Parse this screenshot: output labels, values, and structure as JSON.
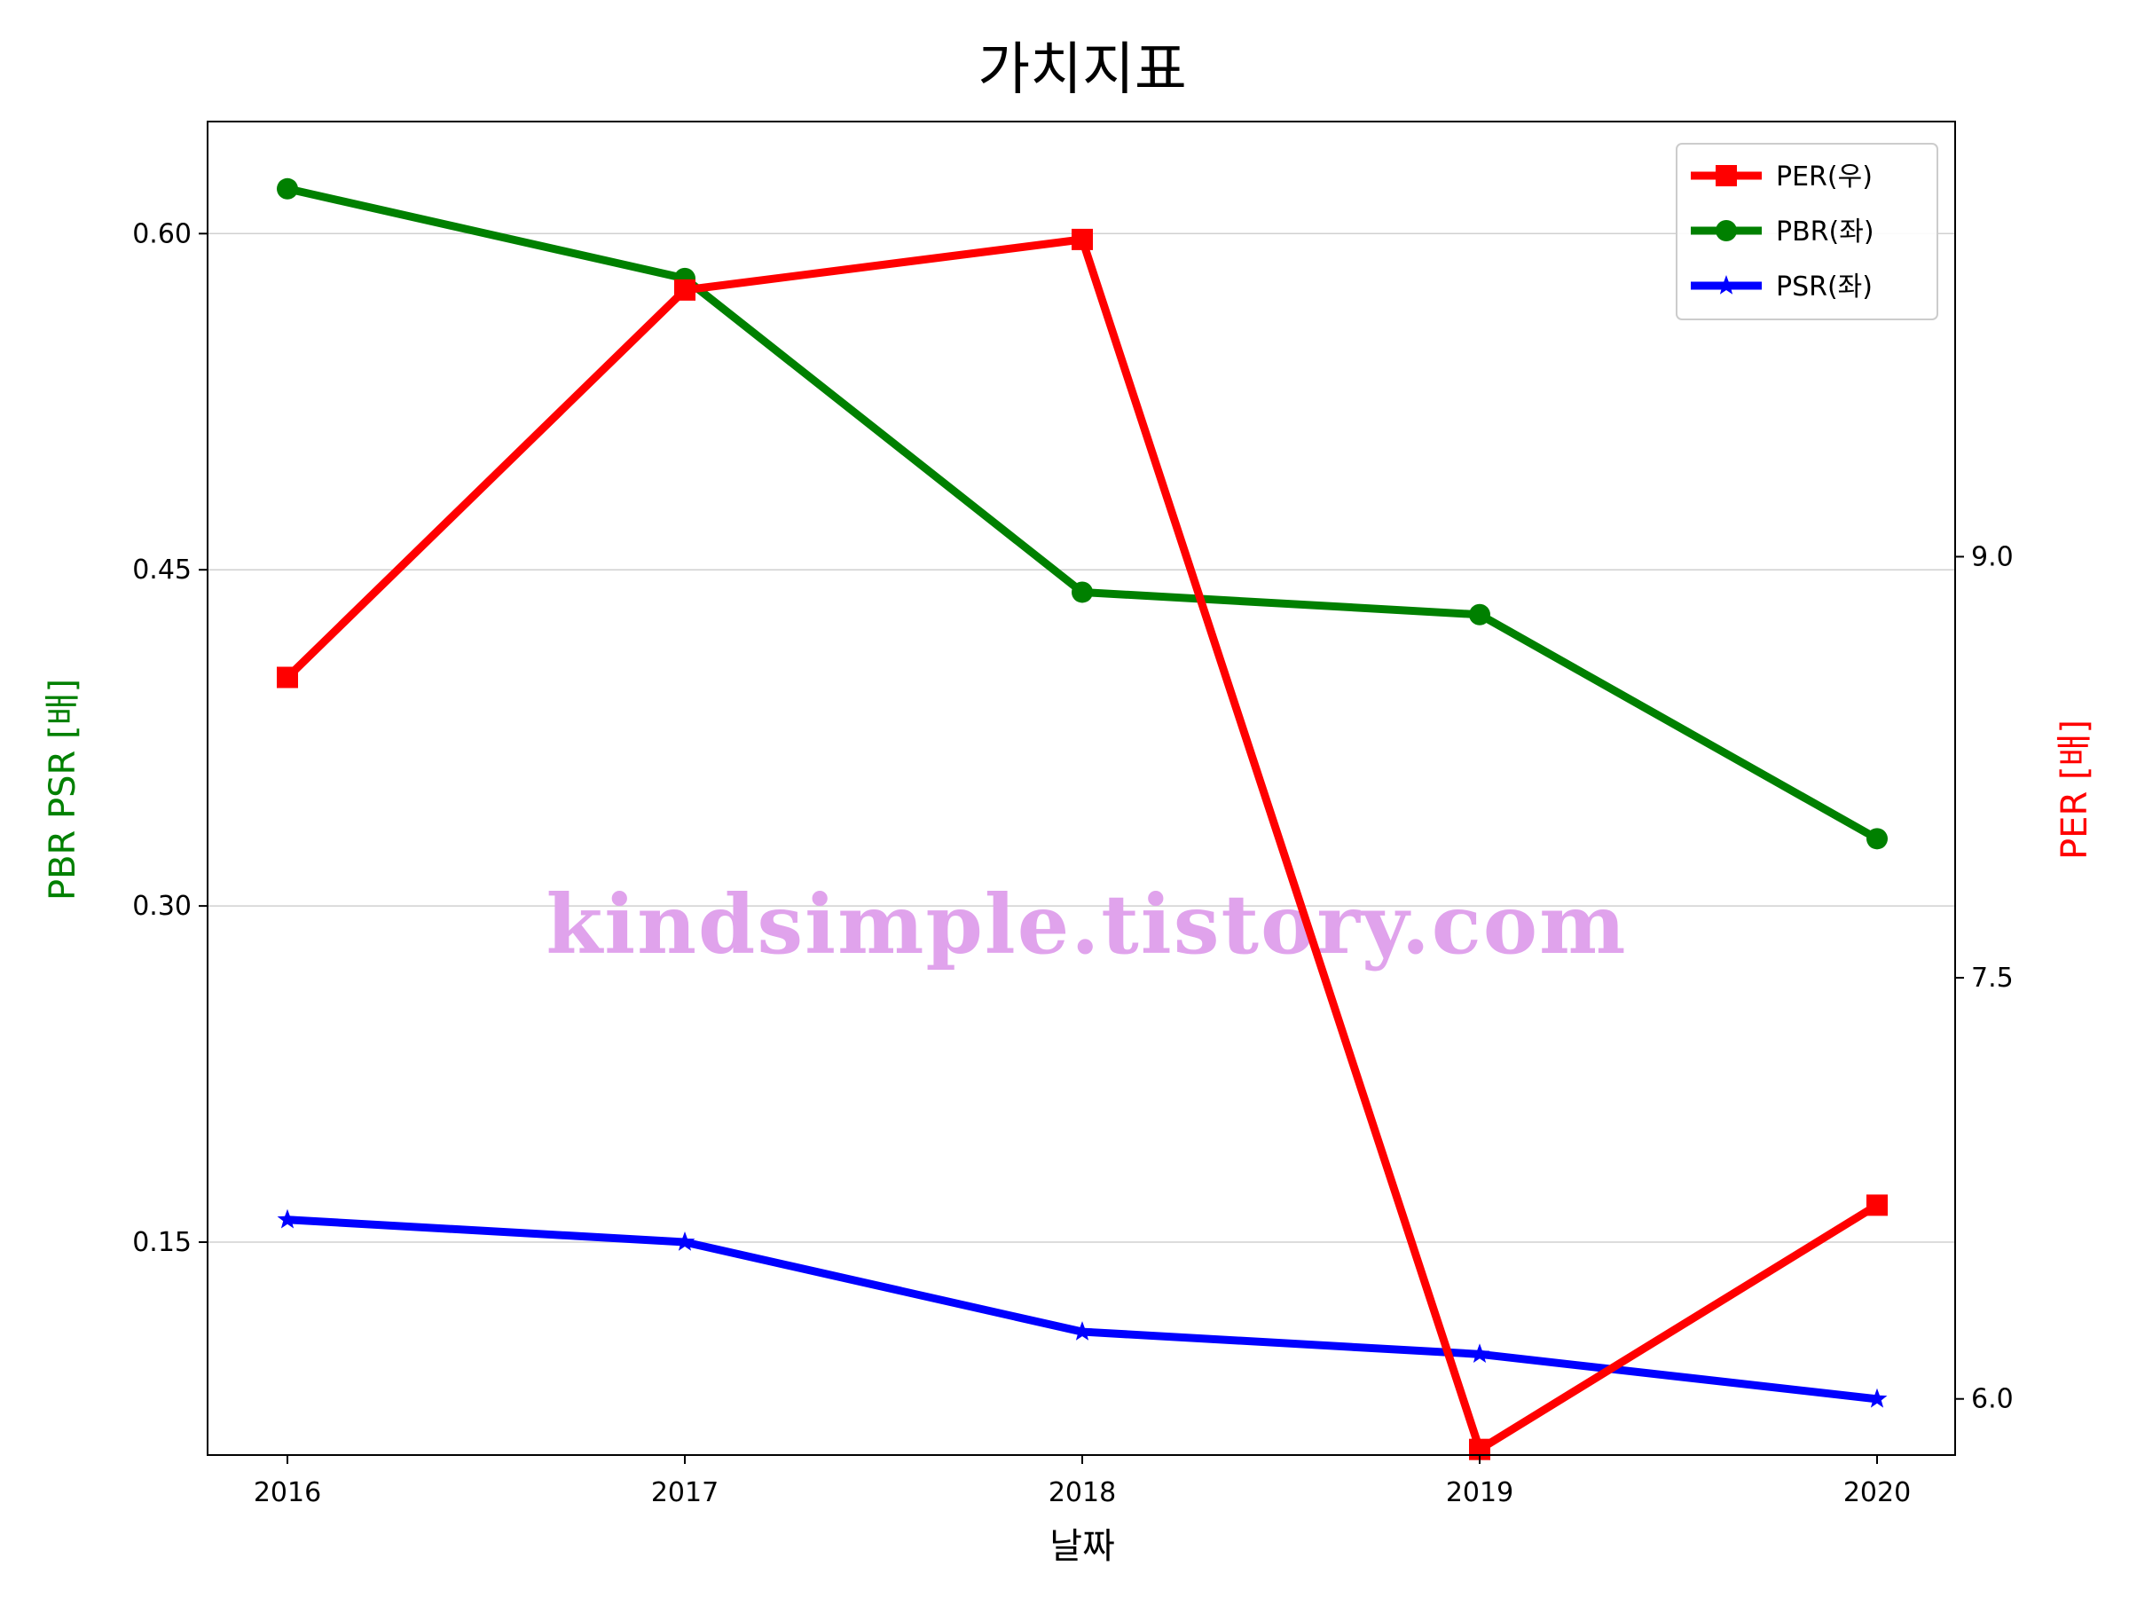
{
  "chart_data": {
    "type": "line",
    "title": "가치지표",
    "xlabel": "날짜",
    "ylabel_left": "PBR PSR [배]",
    "ylabel_right": "PER [배]",
    "categories": [
      "2016",
      "2017",
      "2018",
      "2019",
      "2020"
    ],
    "ylim_left": [
      0.055,
      0.65
    ],
    "ylim_right": [
      5.8,
      10.55
    ],
    "yticks_left": [
      "0.15",
      "0.30",
      "0.45",
      "0.60"
    ],
    "yticks_right": [
      "6.0",
      "7.5",
      "9.0"
    ],
    "grid": "horizontal-left",
    "legend_position": "top-right",
    "series": [
      {
        "name": "PER(우)",
        "axis": "right",
        "marker": "square",
        "color": "#ff0000",
        "values": [
          8.57,
          9.95,
          10.13,
          5.82,
          6.69
        ]
      },
      {
        "name": "PBR(좌)",
        "axis": "left",
        "marker": "circle",
        "color": "#008000",
        "values": [
          0.62,
          0.58,
          0.44,
          0.43,
          0.33
        ]
      },
      {
        "name": "PSR(좌)",
        "axis": "left",
        "marker": "star",
        "color": "#0000ff",
        "values": [
          0.16,
          0.15,
          0.11,
          0.1,
          0.08
        ]
      }
    ],
    "watermark": "kindsimple.tistory.com"
  }
}
